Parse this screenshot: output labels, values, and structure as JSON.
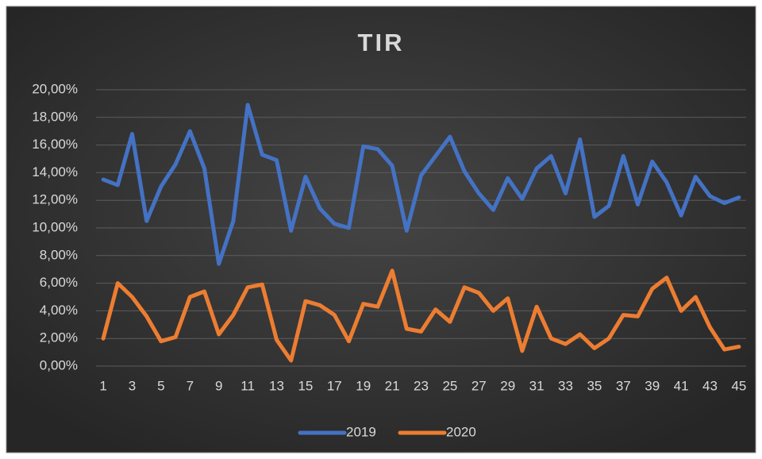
{
  "chart_data": {
    "type": "line",
    "title": "TIR",
    "categories": [
      1,
      null,
      3,
      null,
      5,
      null,
      7,
      null,
      9,
      null,
      11,
      null,
      13,
      null,
      15,
      null,
      17,
      null,
      19,
      null,
      21,
      null,
      23,
      null,
      25,
      null,
      27,
      null,
      29,
      null,
      31,
      null,
      33,
      null,
      35,
      null,
      37,
      null,
      39,
      null,
      41,
      null,
      43,
      null,
      45
    ],
    "series": [
      {
        "name": "2019",
        "color": "#4472c4",
        "values": [
          13.5,
          13.1,
          16.8,
          10.5,
          13.0,
          14.6,
          17.0,
          14.3,
          7.4,
          10.5,
          18.9,
          15.3,
          14.9,
          9.8,
          13.7,
          11.4,
          10.3,
          10.0,
          15.9,
          15.7,
          14.5,
          9.8,
          13.8,
          15.2,
          16.6,
          14.1,
          12.5,
          11.3,
          13.6,
          12.1,
          14.3,
          15.2,
          12.5,
          16.4,
          10.8,
          11.6,
          15.2,
          11.7,
          14.8,
          13.3,
          10.9,
          13.7,
          12.3,
          11.8,
          12.2
        ]
      },
      {
        "name": "2020",
        "color": "#ed7d31",
        "values": [
          2.0,
          6.0,
          5.0,
          3.6,
          1.8,
          2.1,
          5.0,
          5.4,
          2.3,
          3.7,
          5.7,
          5.9,
          1.9,
          0.4,
          4.7,
          4.4,
          3.7,
          1.8,
          4.5,
          4.3,
          6.9,
          2.7,
          2.5,
          4.1,
          3.2,
          5.7,
          5.3,
          4.0,
          4.9,
          1.1,
          4.3,
          2.0,
          1.6,
          2.3,
          1.3,
          2.0,
          3.7,
          3.6,
          5.6,
          6.4,
          4.0,
          5.0,
          2.8,
          1.2,
          1.4
        ]
      }
    ],
    "ylim": [
      0,
      20
    ],
    "yticks": [
      {
        "value": 0,
        "label": "0,00%"
      },
      {
        "value": 2,
        "label": "2,00%"
      },
      {
        "value": 4,
        "label": "4,00%"
      },
      {
        "value": 6,
        "label": "6,00%"
      },
      {
        "value": 8,
        "label": "8,00%"
      },
      {
        "value": 10,
        "label": "10,00%"
      },
      {
        "value": 12,
        "label": "12,00%"
      },
      {
        "value": 14,
        "label": "14,00%"
      },
      {
        "value": 16,
        "label": "16,00%"
      },
      {
        "value": 18,
        "label": "18,00%"
      },
      {
        "value": 20,
        "label": "20,00%"
      }
    ],
    "grid": true,
    "legend": "bottom"
  }
}
